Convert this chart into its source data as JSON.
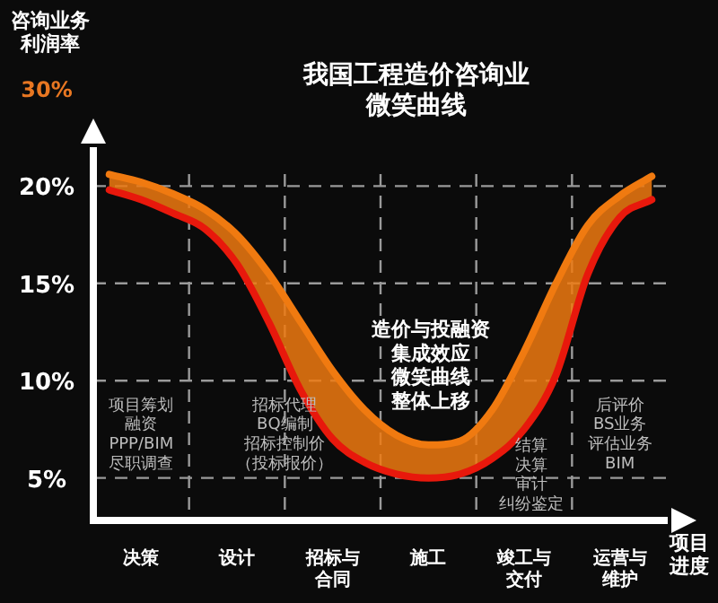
{
  "chart_data": {
    "type": "line",
    "title": "我国工程造价咨询业微笑曲线",
    "ylabel": "咨询业务利润率",
    "xlabel": "项目进度",
    "categories": [
      null,
      "决策",
      null,
      null,
      "设计",
      null,
      null,
      "招标与合同",
      null,
      null,
      "施工",
      null,
      null,
      "竣工与交付",
      null,
      null,
      "运营与维护",
      null
    ],
    "series": [
      {
        "color": "#f07a10",
        "values": [
          20.6,
          20.2,
          19.6,
          18.8,
          17.5,
          15.5,
          13,
          10.5,
          8.5,
          7.2,
          6.7,
          6.9,
          8.5,
          11.5,
          15,
          18,
          19.5,
          20.5
        ],
        "lower": [
          19.8,
          19.3,
          18.6,
          17.8,
          16,
          13,
          9.5,
          7,
          5.8,
          5.2,
          5,
          5.2,
          6,
          7.5,
          10.3,
          15.5,
          18.4,
          19.3
        ],
        "upper": [
          20.6,
          20.2,
          19.6,
          18.8,
          17.5,
          15.5,
          13,
          10.5,
          8.5,
          7.2,
          6.7,
          6.9,
          8.5,
          11.5,
          15,
          18,
          19.5,
          20.5
        ]
      },
      {
        "color": "#e8180c",
        "values": [
          19.8,
          19.3,
          18.6,
          17.8,
          16,
          13,
          9.5,
          7,
          5.8,
          5.2,
          5,
          5.2,
          6,
          7.5,
          10.3,
          15.5,
          18.4,
          19.3
        ]
      }
    ],
    "ylim": [
      3,
      22
    ],
    "yticks": [
      {
        "value": 5,
        "label": "5%"
      },
      {
        "value": 10,
        "label": "10%"
      },
      {
        "value": 15,
        "label": "15%"
      },
      {
        "value": 20,
        "label": "20%"
      }
    ],
    "grid": true,
    "marker": "none",
    "line_style": "solid",
    "annotations": [
      "30%",
      "项目筹划",
      "融资",
      "PPP/BIM",
      "尽职调查",
      "招标代理",
      "BQ编制",
      "招标控制价",
      "（投标报价）",
      "造价与投融资",
      "集成效应",
      "微笑曲线",
      "整体上移",
      "结算",
      "决算",
      "审计",
      "纠纷鉴定",
      "后评价",
      "BS业务",
      "评估业务",
      "BIM"
    ]
  }
}
